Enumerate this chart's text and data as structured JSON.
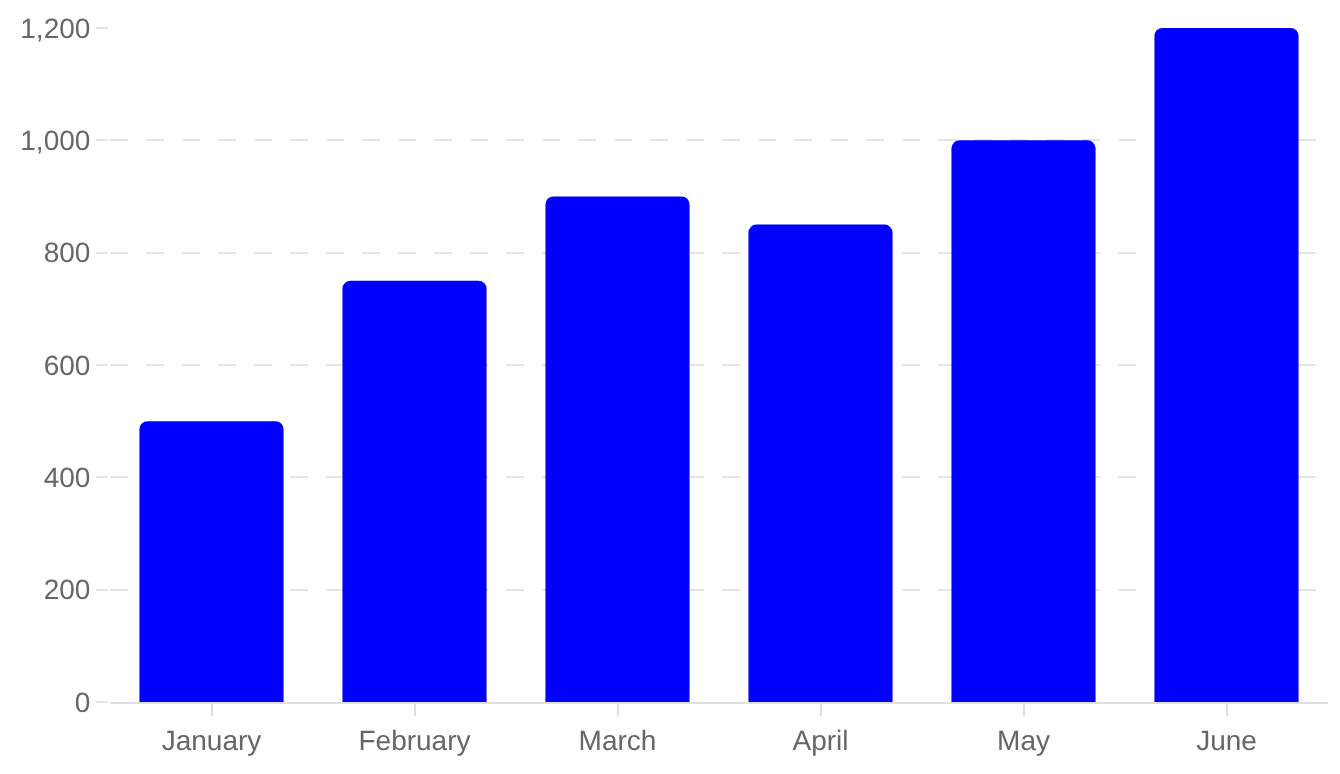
{
  "chart_data": {
    "type": "bar",
    "categories": [
      "January",
      "February",
      "March",
      "April",
      "May",
      "June"
    ],
    "values": [
      500,
      750,
      900,
      850,
      1000,
      1200
    ],
    "color": "#0000ff",
    "ylim": [
      0,
      1200
    ],
    "yticks": [
      0,
      200,
      400,
      600,
      800,
      {
        "value": 1000,
        "label": "1,000"
      },
      {
        "value": 1200,
        "label": "1,200"
      }
    ],
    "grid": "y"
  }
}
